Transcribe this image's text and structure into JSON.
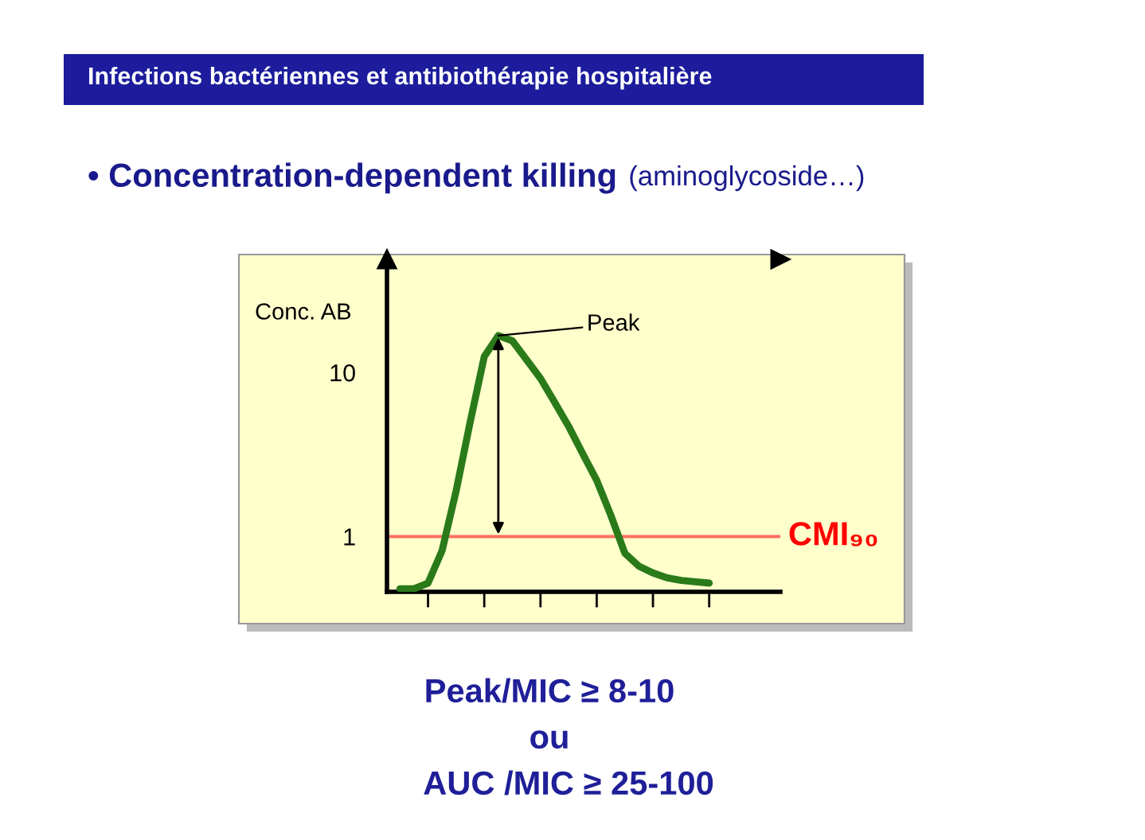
{
  "chart_data": {
    "type": "line",
    "title": "Infections bactériennes et antibiothérapie hospitalière",
    "subtitle": "• Concentration-dependent killing (aminoglycoside…)",
    "ylabel": "Conc. AB",
    "categories": [
      null,
      null,
      null,
      null,
      null,
      null,
      null,
      null,
      null,
      null,
      null,
      null,
      null,
      null,
      null,
      null,
      null,
      null,
      null,
      null,
      null,
      null,
      null
    ],
    "series": [
      {
        "color": "#2a7a1a",
        "values": [
          0.48,
          0.48,
          0.52,
          0.82,
          1.9,
          5.0,
          12.5,
          16.8,
          15.6,
          12.0,
          9.2,
          6.6,
          4.7,
          3.2,
          2.2,
          1.35,
          0.79,
          0.66,
          0.6,
          0.56,
          0.54,
          0.53,
          0.52
        ]
      }
    ],
    "log": "y",
    "ylim": [
      0.46,
      49
    ],
    "yticks": [
      1,
      10
    ],
    "tick_labels": "y",
    "ref_lines": [
      {
        "axis": "y",
        "value": 1,
        "label": "CMI₉₀",
        "color": "#ff7060"
      }
    ],
    "annotations": [
      "Peak",
      "Peak/MIC ≥ 8-10",
      "ou",
      "AUC /MIC ≥ 25-100"
    ]
  }
}
